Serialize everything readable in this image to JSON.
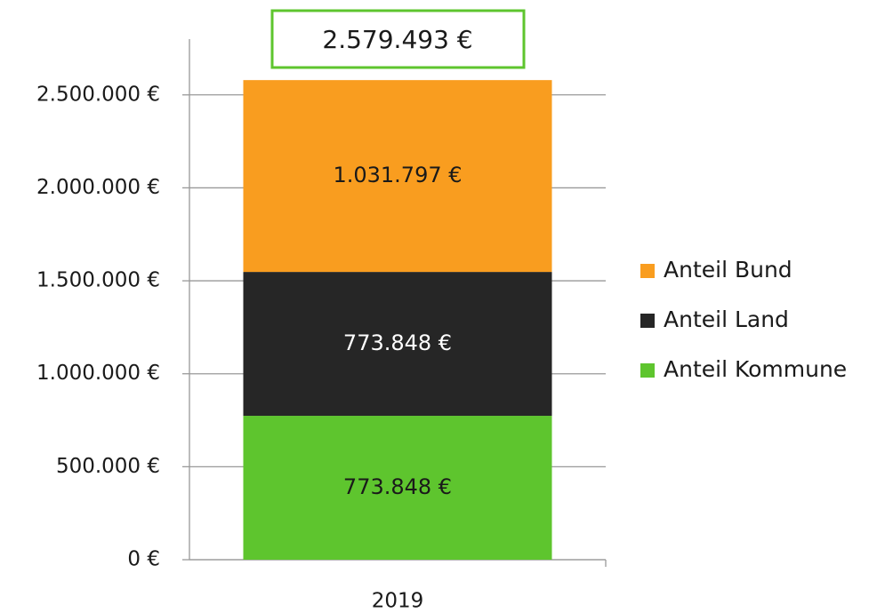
{
  "chart_data": {
    "type": "stacked_bar",
    "annotations": [
      "2.579.493 €"
    ],
    "categories": [
      "2019"
    ],
    "series": [
      {
        "name": "Anteil Kommune",
        "color": "#5ec52e",
        "label_color": "#1a1a1a",
        "values": [
          773848
        ],
        "value_labels": [
          "773.848 €"
        ]
      },
      {
        "name": "Anteil Land",
        "color": "#262626",
        "label_color": "#ffffff",
        "values": [
          773848
        ],
        "value_labels": [
          "773.848 €"
        ]
      },
      {
        "name": "Anteil Bund",
        "color": "#f99d1f",
        "label_color": "#1a1a1a",
        "values": [
          1031797
        ],
        "value_labels": [
          "1.031.797 €"
        ]
      }
    ],
    "ylim": [
      0,
      2800000
    ],
    "yticks": [
      {
        "value": 0,
        "label": "0 €"
      },
      {
        "value": 500000,
        "label": "500.000 €"
      },
      {
        "value": 1000000,
        "label": "1.000.000 €"
      },
      {
        "value": 1500000,
        "label": "1.500.000 €"
      },
      {
        "value": 2000000,
        "label": "2.000.000 €"
      },
      {
        "value": 2500000,
        "label": "2.500.000 €"
      }
    ],
    "grid": true,
    "legend": "right",
    "annotation_color": "#5ec52e"
  }
}
